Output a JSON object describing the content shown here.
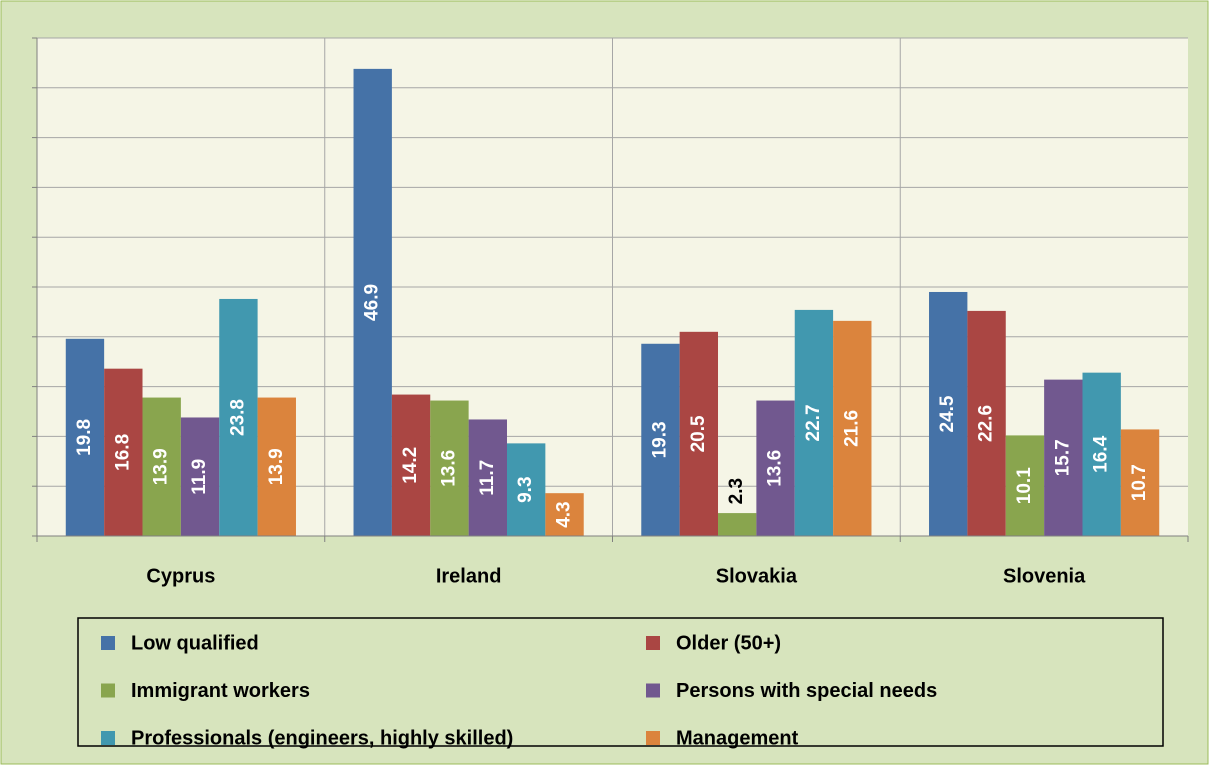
{
  "chart_data": {
    "type": "bar",
    "categories": [
      "Cyprus",
      "Ireland",
      "Slovakia",
      "Slovenia"
    ],
    "series": [
      {
        "name": "Low qualified",
        "color": "#4572a7",
        "values": [
          19.8,
          46.9,
          19.3,
          24.5
        ]
      },
      {
        "name": "Older (50+)",
        "color": "#aa4643",
        "values": [
          16.8,
          14.2,
          20.5,
          22.6
        ]
      },
      {
        "name": "Immigrant workers",
        "color": "#89a54e",
        "values": [
          13.9,
          13.6,
          2.3,
          10.1
        ]
      },
      {
        "name": "Persons with special needs",
        "color": "#71588f",
        "values": [
          11.9,
          11.7,
          13.6,
          15.7
        ]
      },
      {
        "name": "Professionals (engineers, highly skilled)",
        "color": "#4198af",
        "values": [
          23.8,
          9.3,
          22.7,
          16.4
        ]
      },
      {
        "name": "Management",
        "color": "#db843d",
        "values": [
          13.9,
          4.3,
          21.6,
          10.7
        ]
      }
    ],
    "ylim": [
      0,
      50
    ],
    "yticks": [
      0,
      5,
      10,
      15,
      20,
      25,
      30,
      35,
      40,
      45,
      50
    ],
    "grid": true
  }
}
